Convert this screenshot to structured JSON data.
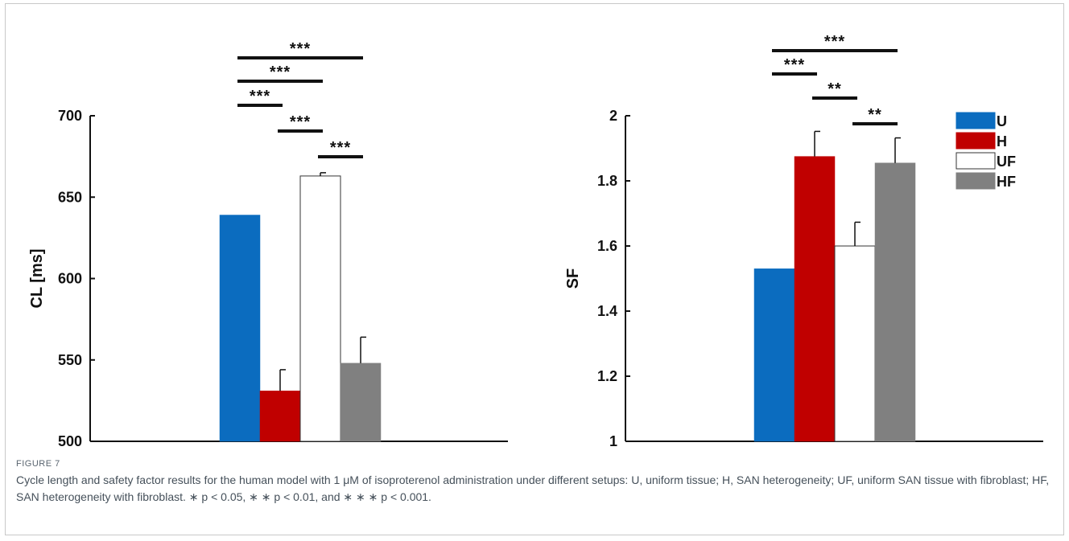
{
  "colors": {
    "U": "#0b6cbf",
    "H": "#c00000",
    "UF": "#ffffff",
    "HF": "#808080"
  },
  "legend": [
    "U",
    "H",
    "UF",
    "HF"
  ],
  "chart_data": [
    {
      "type": "bar",
      "categories": [
        "U",
        "H",
        "UF",
        "HF"
      ],
      "values": [
        639,
        531,
        663,
        548
      ],
      "errors": [
        0,
        13,
        2,
        16
      ],
      "ylabel": "CL [ms]",
      "ylim": [
        500,
        700
      ],
      "yticks": [
        "500",
        "550",
        "600",
        "650",
        "700"
      ],
      "significance": [
        {
          "from": "U",
          "to": "HF",
          "label": "***"
        },
        {
          "from": "U",
          "to": "UF",
          "label": "***"
        },
        {
          "from": "U",
          "to": "H",
          "label": "***"
        },
        {
          "from": "H",
          "to": "UF",
          "label": "***"
        },
        {
          "from": "UF",
          "to": "HF",
          "label": "***"
        }
      ]
    },
    {
      "type": "bar",
      "categories": [
        "U",
        "H",
        "UF",
        "HF"
      ],
      "values": [
        1.53,
        1.875,
        1.6,
        1.855
      ],
      "errors": [
        0,
        0.077,
        0.073,
        0.077
      ],
      "ylabel": "SF",
      "ylim": [
        1,
        2
      ],
      "yticks": [
        "1",
        "1.2",
        "1.4",
        "1.6",
        "1.8",
        "2"
      ],
      "legend_position": "top-right",
      "significance": [
        {
          "from": "U",
          "to": "HF",
          "label": "***"
        },
        {
          "from": "U",
          "to": "H",
          "label": "***"
        },
        {
          "from": "H",
          "to": "UF",
          "label": "**"
        },
        {
          "from": "UF",
          "to": "HF",
          "label": "**"
        }
      ]
    }
  ],
  "caption": {
    "label": "FIGURE 7",
    "text": "Cycle length and safety factor results for the human model with 1 μM of isoproterenol administration under different setups: U, uniform tissue; H, SAN heterogeneity; UF, uniform SAN tissue with fibroblast; HF, SAN heterogeneity with fibroblast. ∗ p < 0.05, ∗ ∗ p < 0.01, and ∗ ∗ ∗ p < 0.001."
  }
}
